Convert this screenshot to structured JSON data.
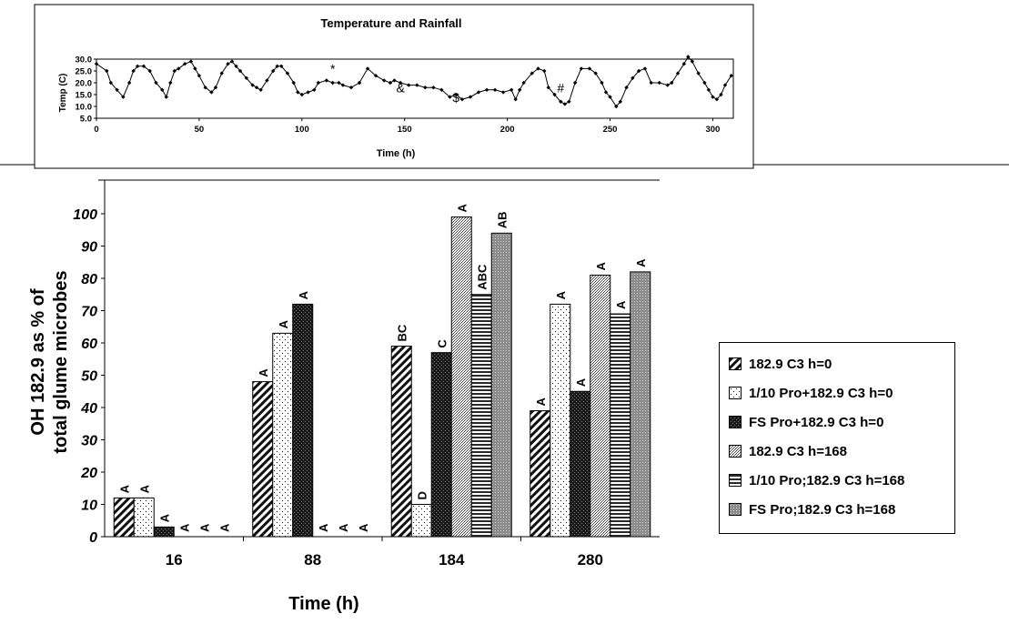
{
  "colors": {
    "axis": "#000000",
    "line": "#000000"
  },
  "chart_data": [
    {
      "type": "line",
      "title": "Temperature and Rainfall",
      "xlabel": "Time (h)",
      "ylabel": "Temp (C)",
      "xlim": [
        0,
        310
      ],
      "ylim": [
        5,
        30
      ],
      "xticks": [
        "0",
        "50",
        "100",
        "150",
        "200",
        "250",
        "300"
      ],
      "yticks": [
        "5.0",
        "10.0",
        "15.0",
        "20.0",
        "25.0",
        "30.0"
      ],
      "series": [
        {
          "x": [
            0,
            5,
            7,
            10,
            13,
            16,
            18,
            20,
            23,
            26,
            29,
            32,
            34,
            36,
            38,
            40,
            43,
            46,
            48,
            50,
            53,
            56,
            58,
            61,
            64,
            66,
            68,
            70,
            73,
            76,
            78,
            80,
            83,
            86,
            88,
            90,
            93,
            96,
            98,
            100,
            103,
            106,
            108,
            112,
            115,
            118,
            120,
            124,
            128,
            132,
            136,
            140,
            143,
            145,
            148,
            152,
            156,
            160,
            164,
            168,
            172,
            175,
            178,
            182,
            186,
            190,
            194,
            198,
            202,
            204,
            206,
            208,
            212,
            215,
            218,
            220,
            223,
            226,
            228,
            230,
            233,
            236,
            240,
            243,
            246,
            248,
            250,
            253,
            255,
            258,
            261,
            264,
            267,
            270,
            274,
            278,
            280,
            283,
            286,
            288,
            290,
            293,
            296,
            298,
            300,
            302,
            304,
            306,
            309
          ],
          "values": [
            28,
            25,
            20,
            17,
            14,
            20,
            25,
            27,
            27,
            25,
            20,
            17,
            14,
            20,
            25,
            26,
            28,
            29,
            26,
            23,
            18,
            16,
            18,
            24,
            28,
            29,
            27,
            25,
            22,
            19,
            18,
            17,
            21,
            25,
            27,
            27,
            24,
            20,
            16,
            15,
            16,
            17,
            20,
            21,
            20,
            20,
            19,
            18,
            20,
            26,
            23,
            21,
            20,
            21,
            20,
            19,
            19,
            18,
            18,
            17,
            14,
            15,
            13,
            14,
            16,
            17,
            17,
            16,
            17,
            13,
            17,
            20,
            24,
            26,
            25,
            18,
            15,
            12,
            11,
            12,
            20,
            26,
            26,
            24,
            20,
            16,
            14,
            10,
            12,
            18,
            22,
            25,
            26,
            20,
            20,
            19,
            20,
            24,
            28,
            31,
            29,
            24,
            20,
            17,
            14,
            13,
            15,
            19,
            23
          ]
        }
      ],
      "annotations": [
        "*",
        "&",
        "$",
        "#"
      ]
    },
    {
      "type": "bar",
      "title": "",
      "xlabel": "Time (h)",
      "ylabel_lines": [
        "OH 182.9 as % of",
        "total glume microbes"
      ],
      "categories": [
        "16",
        "88",
        "184",
        "280"
      ],
      "ylim": [
        0,
        100
      ],
      "yticks": [
        "0",
        "10",
        "20",
        "30",
        "40",
        "50",
        "60",
        "70",
        "80",
        "90",
        "100"
      ],
      "legend_position": "right",
      "series": [
        {
          "name": "182.9 C3 h=0",
          "pattern": "diagonal",
          "values": [
            12,
            48,
            59,
            39
          ],
          "labels": [
            "A",
            "A",
            "BC",
            "A"
          ]
        },
        {
          "name": "1/10 Pro+182.9 C3 h=0",
          "pattern": "sparse-dots",
          "values": [
            12,
            63,
            10,
            72
          ],
          "labels": [
            "A",
            "A",
            "D",
            "A"
          ]
        },
        {
          "name": "FS Pro+182.9 C3 h=0",
          "pattern": "dark",
          "values": [
            3,
            72,
            57,
            45
          ],
          "labels": [
            "A",
            "A",
            "C",
            "A"
          ]
        },
        {
          "name": "182.9 C3 h=168",
          "pattern": "dense-dots",
          "values": [
            0,
            0,
            99,
            81
          ],
          "labels": [
            "A",
            "A",
            "A",
            "A"
          ]
        },
        {
          "name": "1/10 Pro;182.9 C3 h=168",
          "pattern": "horizontal",
          "values": [
            0,
            0,
            75,
            69
          ],
          "labels": [
            "A",
            "A",
            "ABC",
            "A"
          ]
        },
        {
          "name": "FS Pro;182.9 C3 h=168",
          "pattern": "gray-dots",
          "values": [
            0,
            0,
            94,
            82
          ],
          "labels": [
            "A",
            "A",
            "AB",
            "A"
          ]
        }
      ]
    }
  ]
}
